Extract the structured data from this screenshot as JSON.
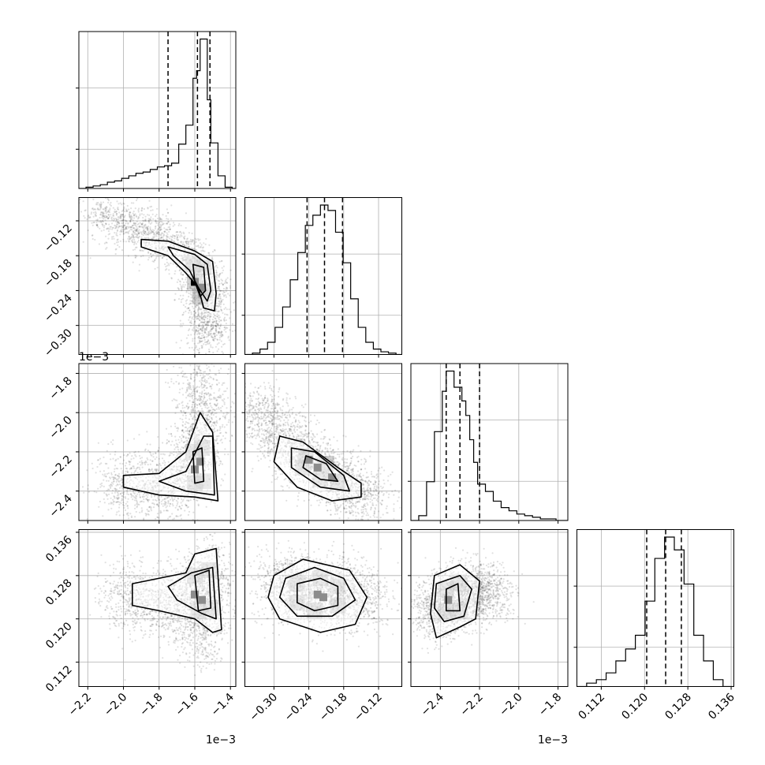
{
  "chart_data": {
    "type": "corner",
    "ndim": 4,
    "title": "",
    "grid": true,
    "variables": [
      {
        "range": [
          -2.25,
          -1.37
        ],
        "ticks": [
          -2.2,
          -2.0,
          -1.8,
          -1.6,
          -1.4
        ],
        "tick_labels": [
          "−2.2",
          "−2.0",
          "−1.8",
          "−1.6",
          "−1.4"
        ],
        "offset_label": "1e−3",
        "quantiles": [
          -1.75,
          -1.585,
          -1.515
        ],
        "hist_shape": "left-skewed",
        "hist_edges": [
          -2.25,
          -2.21,
          -2.17,
          -2.13,
          -2.09,
          -2.05,
          -2.01,
          -1.97,
          -1.93,
          -1.89,
          -1.85,
          -1.81,
          -1.77,
          -1.73,
          -1.69,
          -1.65,
          -1.61,
          -1.59,
          -1.57,
          -1.55,
          -1.53,
          -1.51,
          -1.47,
          -1.43,
          -1.39,
          -1.37
        ],
        "hist_counts": [
          0,
          2,
          4,
          6,
          10,
          12,
          16,
          20,
          24,
          26,
          30,
          34,
          36,
          40,
          70,
          100,
          174,
          186,
          236,
          236,
          140,
          72,
          20,
          2,
          0
        ]
      },
      {
        "range": [
          -0.35,
          -0.08
        ],
        "ticks": [
          -0.3,
          -0.24,
          -0.18,
          -0.12
        ],
        "tick_labels": [
          "−0.30",
          "−0.24",
          "−0.18",
          "−0.12"
        ],
        "offset_label": "",
        "quantiles": [
          -0.243,
          -0.213,
          -0.182
        ],
        "hist_shape": "symmetric",
        "hist_edges": [
          -0.35,
          -0.337,
          -0.324,
          -0.311,
          -0.298,
          -0.285,
          -0.272,
          -0.259,
          -0.246,
          -0.233,
          -0.22,
          -0.207,
          -0.194,
          -0.181,
          -0.168,
          -0.155,
          -0.142,
          -0.129,
          -0.116,
          -0.103,
          -0.09,
          -0.08
        ],
        "hist_counts": [
          0,
          2,
          8,
          18,
          40,
          70,
          110,
          150,
          190,
          205,
          220,
          212,
          180,
          135,
          82,
          40,
          18,
          8,
          4,
          2,
          0
        ]
      },
      {
        "range": [
          -2.55,
          -1.75
        ],
        "ticks": [
          -2.4,
          -2.2,
          -2.0,
          -1.8
        ],
        "tick_labels": [
          "−2.4",
          "−2.2",
          "−2.0",
          "−1.8"
        ],
        "offset_label": "1e−3",
        "quantiles": [
          -2.37,
          -2.3,
          -2.2
        ],
        "hist_shape": "right-skewed",
        "hist_edges": [
          -2.55,
          -2.51,
          -2.47,
          -2.43,
          -2.39,
          -2.37,
          -2.35,
          -2.33,
          -2.31,
          -2.29,
          -2.27,
          -2.25,
          -2.23,
          -2.21,
          -2.17,
          -2.13,
          -2.09,
          -2.05,
          -2.01,
          -1.97,
          -1.93,
          -1.89,
          -1.85,
          -1.81,
          -1.77,
          -1.75
        ],
        "hist_counts": [
          0,
          6,
          48,
          110,
          160,
          185,
          185,
          165,
          165,
          148,
          130,
          100,
          72,
          45,
          36,
          24,
          16,
          12,
          8,
          6,
          4,
          2,
          2,
          0,
          0
        ]
      },
      {
        "range": [
          0.1075,
          0.1365
        ],
        "ticks": [
          0.112,
          0.12,
          0.128,
          0.136
        ],
        "tick_labels": [
          "0.112",
          "0.120",
          "0.128",
          "0.136"
        ],
        "offset_label": "",
        "quantiles": [
          0.1204,
          0.1239,
          0.1268
        ],
        "hist_shape": "symmetric",
        "hist_edges": [
          0.1075,
          0.1093,
          0.1111,
          0.1129,
          0.1147,
          0.1165,
          0.1183,
          0.1201,
          0.1219,
          0.1237,
          0.1255,
          0.1273,
          0.1291,
          0.1309,
          0.1327,
          0.1345,
          0.1365
        ],
        "hist_counts": [
          0,
          4,
          8,
          16,
          30,
          44,
          60,
          100,
          150,
          175,
          160,
          120,
          60,
          30,
          8,
          0
        ]
      }
    ],
    "pairs": [
      {
        "row": 1,
        "col": 0,
        "mean": [
          -1.57,
          -0.22
        ],
        "sd": [
          0.07,
          0.022
        ],
        "corr": -0.8,
        "cloud": [
          [
            -2.15,
            -0.108
          ],
          [
            -2.05,
            -0.118
          ],
          [
            -1.95,
            -0.13
          ],
          [
            -1.85,
            -0.145
          ],
          [
            -1.75,
            -0.158
          ],
          [
            -1.65,
            -0.178
          ],
          [
            -1.58,
            -0.2
          ],
          [
            -1.55,
            -0.225
          ],
          [
            -1.52,
            -0.25
          ],
          [
            -1.52,
            -0.28
          ],
          [
            -1.55,
            -0.3
          ],
          [
            -1.53,
            -0.33
          ]
        ],
        "contours": [
          [
            [
              -1.9,
              -0.152
            ],
            [
              -1.75,
              -0.155
            ],
            [
              -1.6,
              -0.172
            ],
            [
              -1.5,
              -0.19
            ],
            [
              -1.48,
              -0.245
            ],
            [
              -1.49,
              -0.275
            ],
            [
              -1.55,
              -0.27
            ],
            [
              -1.58,
              -0.235
            ],
            [
              -1.65,
              -0.21
            ],
            [
              -1.75,
              -0.18
            ],
            [
              -1.9,
              -0.165
            ]
          ],
          [
            [
              -1.75,
              -0.165
            ],
            [
              -1.6,
              -0.178
            ],
            [
              -1.53,
              -0.195
            ],
            [
              -1.51,
              -0.24
            ],
            [
              -1.53,
              -0.258
            ],
            [
              -1.58,
              -0.235
            ],
            [
              -1.63,
              -0.205
            ],
            [
              -1.72,
              -0.18
            ]
          ],
          [
            [
              -1.61,
              -0.195
            ],
            [
              -1.55,
              -0.2
            ],
            [
              -1.54,
              -0.24
            ],
            [
              -1.57,
              -0.25
            ],
            [
              -1.6,
              -0.225
            ]
          ]
        ],
        "density_peaks": [
          [
            -1.6,
            -0.225
          ],
          [
            -1.56,
            -0.235
          ]
        ]
      },
      {
        "row": 2,
        "col": 0,
        "mean": [
          -1.56,
          -2.29
        ],
        "sd": [
          0.08,
          0.1
        ],
        "corr": 0.3,
        "cloud": [
          [
            -2.1,
            -2.36
          ],
          [
            -1.95,
            -2.37
          ],
          [
            -1.8,
            -2.37
          ],
          [
            -1.7,
            -2.36
          ],
          [
            -1.62,
            -2.3
          ],
          [
            -1.57,
            -2.2
          ],
          [
            -1.55,
            -2.05
          ],
          [
            -1.57,
            -1.95
          ],
          [
            -1.56,
            -1.8
          ]
        ],
        "contours": [
          [
            [
              -2.0,
              -2.32
            ],
            [
              -1.8,
              -2.31
            ],
            [
              -1.65,
              -2.2
            ],
            [
              -1.57,
              -2.0
            ],
            [
              -1.5,
              -2.1
            ],
            [
              -1.47,
              -2.45
            ],
            [
              -1.6,
              -2.43
            ],
            [
              -1.8,
              -2.42
            ],
            [
              -2.0,
              -2.38
            ]
          ],
          [
            [
              -1.8,
              -2.35
            ],
            [
              -1.65,
              -2.3
            ],
            [
              -1.55,
              -2.12
            ],
            [
              -1.5,
              -2.12
            ],
            [
              -1.49,
              -2.42
            ],
            [
              -1.65,
              -2.4
            ]
          ],
          [
            [
              -1.61,
              -2.2
            ],
            [
              -1.56,
              -2.18
            ],
            [
              -1.55,
              -2.35
            ],
            [
              -1.6,
              -2.36
            ]
          ]
        ],
        "density_peaks": [
          [
            -1.6,
            -2.29
          ],
          [
            -1.57,
            -2.25
          ]
        ]
      },
      {
        "row": 2,
        "col": 1,
        "mean": [
          -0.225,
          -2.29
        ],
        "sd": [
          0.028,
          0.08
        ],
        "corr": -0.85,
        "cloud": [
          [
            -0.33,
            -1.95
          ],
          [
            -0.31,
            -2.05
          ],
          [
            -0.28,
            -2.15
          ],
          [
            -0.25,
            -2.23
          ],
          [
            -0.22,
            -2.29
          ],
          [
            -0.19,
            -2.35
          ],
          [
            -0.16,
            -2.4
          ],
          [
            -0.13,
            -2.44
          ]
        ],
        "contours": [
          [
            [
              -0.29,
              -2.12
            ],
            [
              -0.25,
              -2.15
            ],
            [
              -0.19,
              -2.28
            ],
            [
              -0.15,
              -2.36
            ],
            [
              -0.15,
              -2.43
            ],
            [
              -0.2,
              -2.45
            ],
            [
              -0.26,
              -2.38
            ],
            [
              -0.3,
              -2.25
            ]
          ],
          [
            [
              -0.27,
              -2.18
            ],
            [
              -0.23,
              -2.2
            ],
            [
              -0.18,
              -2.32
            ],
            [
              -0.17,
              -2.4
            ],
            [
              -0.22,
              -2.38
            ],
            [
              -0.27,
              -2.28
            ]
          ],
          [
            [
              -0.245,
              -2.22
            ],
            [
              -0.21,
              -2.26
            ],
            [
              -0.19,
              -2.35
            ],
            [
              -0.22,
              -2.34
            ],
            [
              -0.25,
              -2.28
            ]
          ]
        ],
        "density_peaks": [
          [
            -0.24,
            -2.24
          ],
          [
            -0.225,
            -2.28
          ],
          [
            -0.2,
            -2.33
          ]
        ]
      },
      {
        "row": 3,
        "col": 0,
        "mean": [
          -1.55,
          0.1245
        ],
        "sd": [
          0.08,
          0.0035
        ],
        "corr": 0.1,
        "cloud": [
          [
            -2.05,
            0.1245
          ],
          [
            -1.9,
            0.1235
          ],
          [
            -1.75,
            0.122
          ],
          [
            -1.65,
            0.1245
          ],
          [
            -1.55,
            0.125
          ],
          [
            -1.5,
            0.13
          ],
          [
            -1.52,
            0.118
          ],
          [
            -1.6,
            0.116
          ]
        ],
        "contours": [
          [
            [
              -1.95,
              0.1265
            ],
            [
              -1.65,
              0.1285
            ],
            [
              -1.6,
              0.132
            ],
            [
              -1.48,
              0.133
            ],
            [
              -1.45,
              0.118
            ],
            [
              -1.5,
              0.1175
            ],
            [
              -1.6,
              0.12
            ],
            [
              -1.8,
              0.1215
            ],
            [
              -1.95,
              0.1225
            ]
          ],
          [
            [
              -1.75,
              0.126
            ],
            [
              -1.62,
              0.1285
            ],
            [
              -1.5,
              0.1295
            ],
            [
              -1.48,
              0.12
            ],
            [
              -1.56,
              0.121
            ],
            [
              -1.7,
              0.1235
            ]
          ],
          [
            [
              -1.6,
              0.128
            ],
            [
              -1.52,
              0.129
            ],
            [
              -1.51,
              0.122
            ],
            [
              -1.58,
              0.1215
            ]
          ]
        ],
        "density_peaks": [
          [
            -1.6,
            0.1245
          ],
          [
            -1.56,
            0.1235
          ]
        ]
      },
      {
        "row": 3,
        "col": 1,
        "mean": [
          -0.225,
          0.1245
        ],
        "sd": [
          0.03,
          0.0035
        ],
        "corr": -0.05,
        "cloud": [
          [
            -0.3,
            0.127
          ],
          [
            -0.26,
            0.125
          ],
          [
            -0.22,
            0.1245
          ],
          [
            -0.18,
            0.1245
          ],
          [
            -0.14,
            0.1235
          ]
        ],
        "contours": [
          [
            [
              -0.3,
              0.128
            ],
            [
              -0.25,
              0.131
            ],
            [
              -0.17,
              0.129
            ],
            [
              -0.14,
              0.124
            ],
            [
              -0.16,
              0.119
            ],
            [
              -0.22,
              0.1175
            ],
            [
              -0.29,
              0.12
            ],
            [
              -0.31,
              0.124
            ]
          ],
          [
            [
              -0.28,
              0.1275
            ],
            [
              -0.23,
              0.1295
            ],
            [
              -0.18,
              0.1275
            ],
            [
              -0.16,
              0.1235
            ],
            [
              -0.2,
              0.1205
            ],
            [
              -0.26,
              0.1205
            ],
            [
              -0.29,
              0.124
            ]
          ],
          [
            [
              -0.26,
              0.1265
            ],
            [
              -0.22,
              0.1275
            ],
            [
              -0.19,
              0.126
            ],
            [
              -0.19,
              0.1225
            ],
            [
              -0.23,
              0.1215
            ],
            [
              -0.26,
              0.123
            ]
          ]
        ],
        "density_peaks": [
          [
            -0.225,
            0.1245
          ],
          [
            -0.215,
            0.124
          ]
        ]
      },
      {
        "row": 3,
        "col": 2,
        "mean": [
          -2.33,
          0.1235
        ],
        "sd": [
          0.08,
          0.003
        ],
        "corr": 0.25,
        "cloud": [
          [
            -2.45,
            0.12
          ],
          [
            -2.38,
            0.123
          ],
          [
            -2.3,
            0.124
          ],
          [
            -2.22,
            0.1255
          ],
          [
            -2.15,
            0.1245
          ]
        ],
        "contours": [
          [
            [
              -2.43,
              0.128
            ],
            [
              -2.3,
              0.13
            ],
            [
              -2.2,
              0.127
            ],
            [
              -2.22,
              0.12
            ],
            [
              -2.3,
              0.1185
            ],
            [
              -2.42,
              0.1165
            ],
            [
              -2.45,
              0.121
            ]
          ],
          [
            [
              -2.42,
              0.1265
            ],
            [
              -2.3,
              0.128
            ],
            [
              -2.24,
              0.1255
            ],
            [
              -2.28,
              0.1205
            ],
            [
              -2.38,
              0.1195
            ],
            [
              -2.43,
              0.122
            ]
          ],
          [
            [
              -2.37,
              0.1255
            ],
            [
              -2.31,
              0.1265
            ],
            [
              -2.3,
              0.1215
            ],
            [
              -2.37,
              0.1215
            ]
          ]
        ],
        "density_peaks": [
          [
            -2.36,
            0.1235
          ]
        ]
      }
    ]
  }
}
